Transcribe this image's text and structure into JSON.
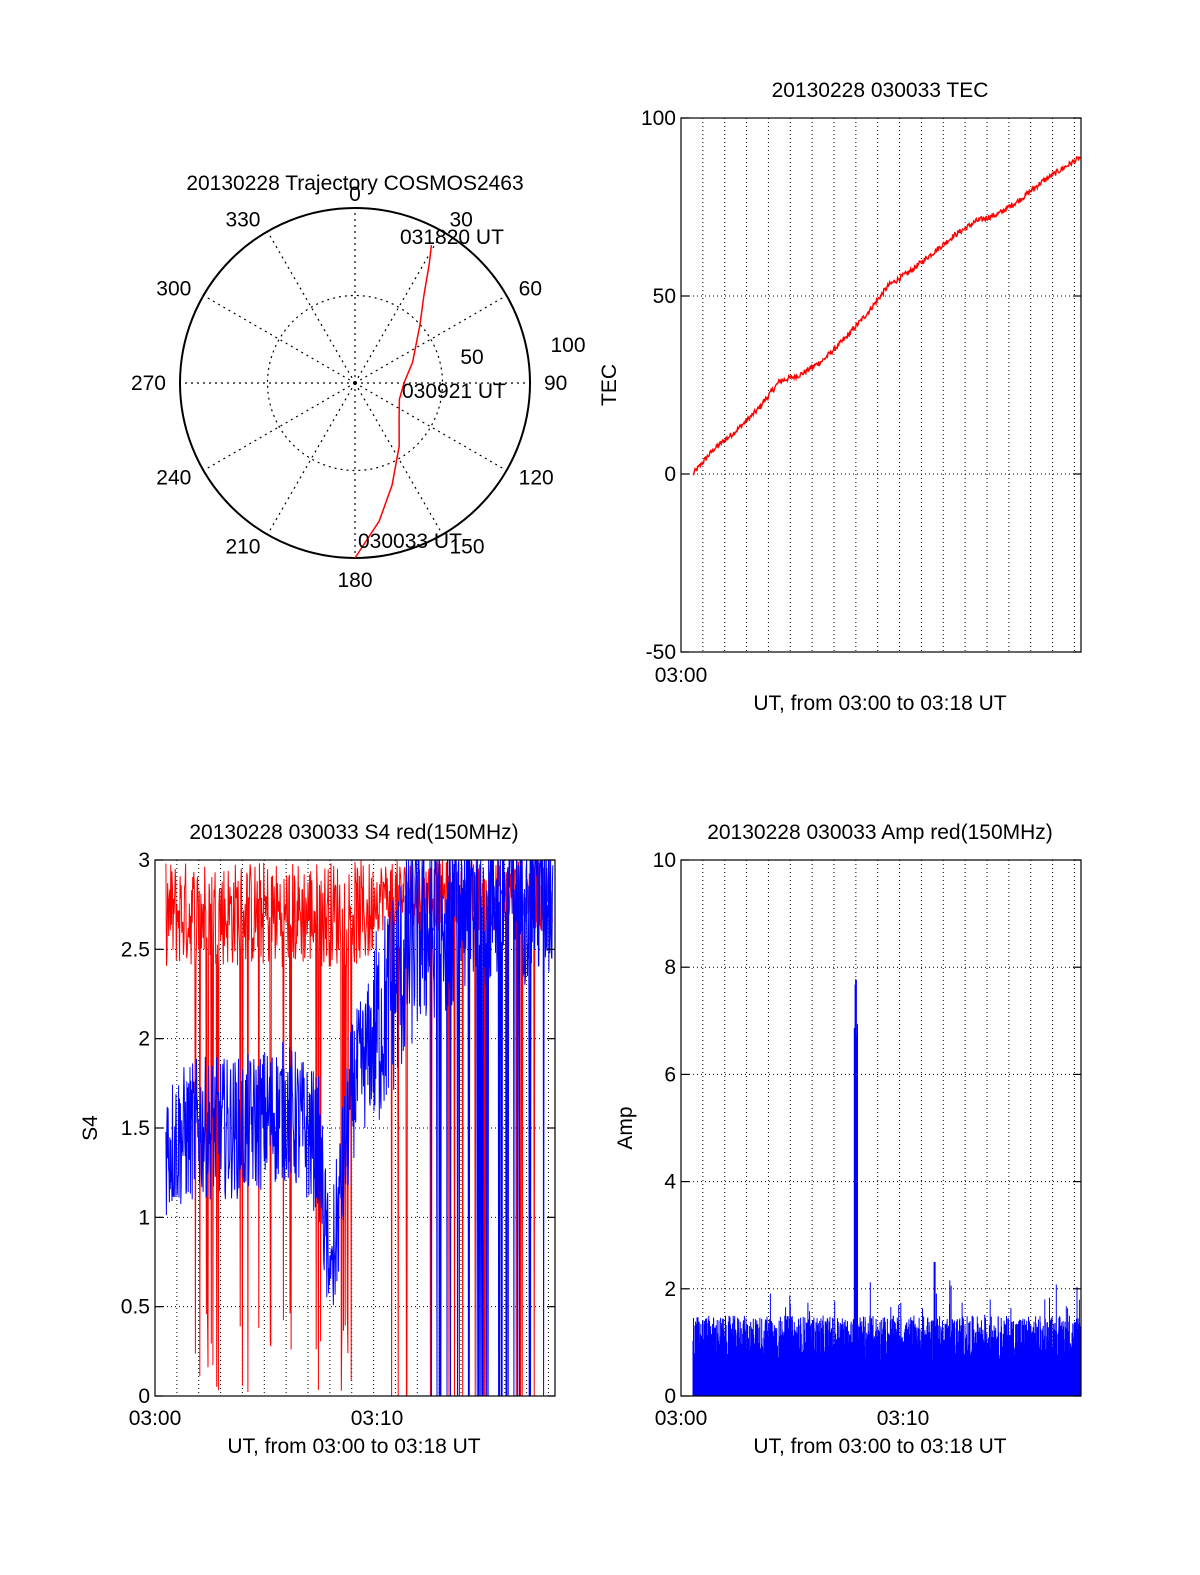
{
  "colors": {
    "red": "#ff0000",
    "blue": "#0000ff",
    "axis": "#000000"
  },
  "chart_data": [
    {
      "type": "polar",
      "title": "20130228 Trajectory COSMOS2463",
      "angle_labels": [
        "0",
        "30",
        "60",
        "90",
        "120",
        "150",
        "180",
        "210",
        "240",
        "270",
        "300",
        "330"
      ],
      "radius_labels": [
        "50",
        "100"
      ],
      "rlim": [
        0,
        100
      ],
      "grid": true,
      "track_points": [
        {
          "az": 180,
          "r": 100
        },
        {
          "az": 170,
          "r": 80
        },
        {
          "az": 160,
          "r": 62
        },
        {
          "az": 145,
          "r": 44
        },
        {
          "az": 128,
          "r": 32
        },
        {
          "az": 110,
          "r": 27
        },
        {
          "az": 90,
          "r": 28
        },
        {
          "az": 70,
          "r": 35
        },
        {
          "az": 48,
          "r": 50
        },
        {
          "az": 38,
          "r": 64
        },
        {
          "az": 32,
          "r": 80
        },
        {
          "az": 29,
          "r": 90
        }
      ],
      "annotations": [
        "030033 UT",
        "030921 UT",
        "031820 UT"
      ]
    },
    {
      "type": "line",
      "title": "20130228 030033 TEC",
      "ylabel": "TEC",
      "xlabel": "UT, from 03:00 to 03:18 UT",
      "x_tick_labels": [
        "03:00"
      ],
      "y_tick_labels": [
        "-50",
        "0",
        "50",
        "100"
      ],
      "ylim": [
        -50,
        100
      ],
      "xlim_minutes": [
        0,
        18.3
      ],
      "grid": true,
      "series": [
        {
          "color": "red",
          "x_minutes": [
            0.55,
            1.5,
            2.5,
            3.5,
            4.0,
            4.5,
            5.5,
            6.5,
            7.5,
            8.5,
            9.5,
            10.5,
            11.5,
            12.5,
            13.5,
            14.5,
            15.5,
            16.5,
            17.5,
            18.3
          ],
          "y": [
            0,
            7,
            12,
            18,
            22,
            26,
            28,
            32,
            38,
            45,
            53,
            57,
            62,
            67,
            71,
            73,
            77,
            82,
            86,
            89
          ]
        }
      ]
    },
    {
      "type": "line",
      "title": "20130228 030033 S4 red(150MHz)",
      "ylabel": "S4",
      "xlabel": "UT, from 03:00 to 03:18 UT",
      "x_tick_labels": [
        "03:00",
        "03:10"
      ],
      "y_tick_labels": [
        "0",
        "0.5",
        "1",
        "1.5",
        "2",
        "2.5",
        "3"
      ],
      "ylim": [
        0,
        3
      ],
      "xlim_minutes": [
        0,
        18.3
      ],
      "grid": true,
      "series": [
        {
          "color": "red",
          "description": "S4 saturating near 3 for much of 03:00 to 03:10 with drops to 0"
        },
        {
          "color": "blue",
          "x_minutes": [
            0.5,
            2,
            4,
            6,
            7.5,
            8,
            9,
            10,
            11,
            12,
            13,
            14,
            15,
            16,
            17,
            18
          ],
          "y": [
            1.4,
            1.5,
            1.5,
            1.6,
            1.4,
            0.6,
            1.7,
            2.0,
            2.3,
            2.6,
            2.7,
            2.8,
            2.8,
            2.9,
            2.9,
            2.9
          ]
        }
      ]
    },
    {
      "type": "line",
      "title": "20130228 030033 Amp red(150MHz)",
      "ylabel": "Amp",
      "xlabel": "UT, from 03:00 to 03:18 UT",
      "x_tick_labels": [
        "03:00",
        "03:10"
      ],
      "y_tick_labels": [
        "0",
        "2",
        "4",
        "6",
        "8",
        "10"
      ],
      "ylim": [
        0,
        10
      ],
      "xlim_minutes": [
        0,
        18.3
      ],
      "grid": true,
      "series": [
        {
          "color": "blue",
          "baseline": 1.0,
          "peak": {
            "x_minutes": 8.0,
            "y": 8.2
          },
          "secondary_peak": {
            "x_minutes": 11.6,
            "y": 2.5
          }
        }
      ]
    }
  ]
}
